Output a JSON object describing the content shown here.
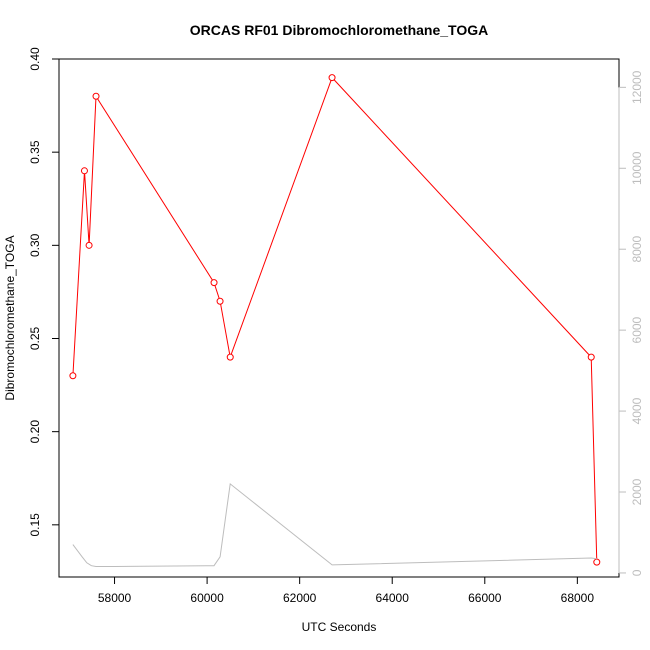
{
  "chart_data": {
    "type": "line",
    "title": "ORCAS RF01 Dibromochloromethane_TOGA",
    "xlabel": "UTC Seconds",
    "ylabel": "Dibromochloromethane_TOGA",
    "xlim": [
      56800,
      68900
    ],
    "ylim": [
      0.122,
      0.4
    ],
    "y2lim": [
      -100,
      12700
    ],
    "x_ticks": [
      58000,
      60000,
      62000,
      64000,
      66000,
      68000
    ],
    "y_ticks": [
      0.15,
      0.2,
      0.25,
      0.3,
      0.35,
      0.4
    ],
    "y2_ticks": [
      0,
      2000,
      4000,
      6000,
      8000,
      10000,
      12000
    ],
    "grid": false,
    "series": [
      {
        "axis": "left",
        "color": "#ff0000",
        "marker": "open-circle",
        "x": [
          57100,
          57350,
          57450,
          57600,
          60150,
          60280,
          60500,
          62700,
          68300,
          68420
        ],
        "y": [
          0.23,
          0.34,
          0.3,
          0.38,
          0.28,
          0.27,
          0.24,
          0.39,
          0.24,
          0.13
        ]
      },
      {
        "axis": "right",
        "color": "#bdbdbd",
        "marker": "none",
        "x": [
          57100,
          57200,
          57300,
          57400,
          57500,
          57600,
          58000,
          60000,
          60150,
          60280,
          60500,
          62700,
          68300,
          68420
        ],
        "y": [
          700,
          550,
          400,
          250,
          180,
          160,
          160,
          180,
          180,
          400,
          2200,
          200,
          370,
          350
        ]
      }
    ]
  }
}
